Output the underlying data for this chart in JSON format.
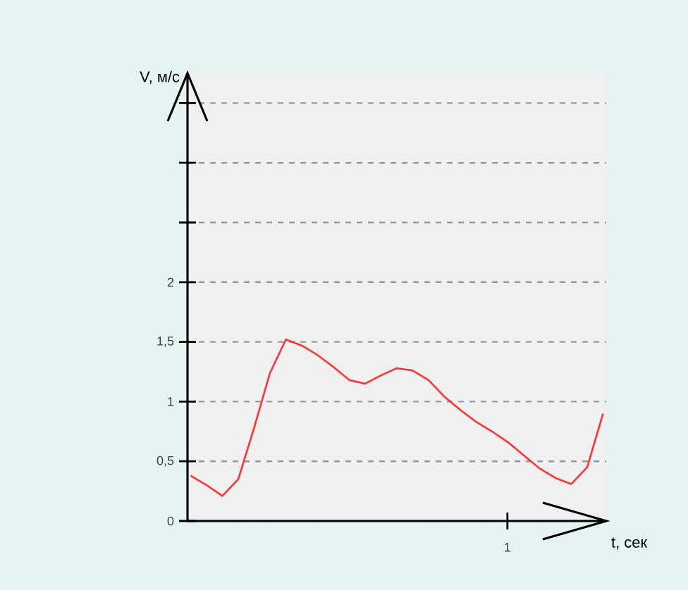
{
  "chart_data": {
    "type": "line",
    "xlabel": "t, сек",
    "ylabel": "V, м/с",
    "categories": [
      null,
      null,
      null,
      null,
      null,
      null,
      null,
      null,
      null,
      null,
      null,
      null,
      null,
      null,
      null,
      null,
      null,
      null,
      null,
      null,
      null,
      null,
      null,
      null,
      null,
      null,
      null
    ],
    "series": [
      {
        "color": "#ff3333",
        "values": [
          0.38,
          0.3,
          0.21,
          0.35,
          0.78,
          1.24,
          1.52,
          1.47,
          1.39,
          1.29,
          1.18,
          1.15,
          1.22,
          1.28,
          1.26,
          1.18,
          1.04,
          0.93,
          0.83,
          0.75,
          0.66,
          0.55,
          0.44,
          0.36,
          0.31,
          0.45,
          0.9
        ]
      }
    ],
    "ylim": [
      0,
      3.75
    ],
    "yticks": [
      {
        "value": 0,
        "label": "0"
      },
      {
        "value": 0.5,
        "label": "0,5"
      },
      {
        "value": 1,
        "label": "1"
      },
      {
        "value": 1.5,
        "label": "1,5"
      },
      {
        "value": 2,
        "label": "2"
      },
      {
        "value": 2.5,
        "label": null
      },
      {
        "value": 3,
        "label": null
      },
      {
        "value": 3.5,
        "label": null
      }
    ],
    "annotations": [
      "1"
    ],
    "grid": "y",
    "marker": "none",
    "line_style": "solid",
    "legend": false
  }
}
